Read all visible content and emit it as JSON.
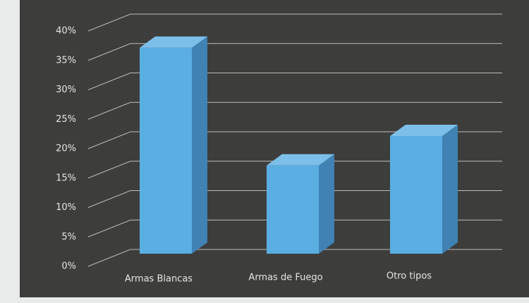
{
  "chart_data": {
    "type": "bar3d",
    "categories": [
      "Armas Blancas",
      "Armas de Fuego",
      "Otro tipos"
    ],
    "values": [
      35,
      15,
      20
    ],
    "color": "#5aaee2",
    "ylim": [
      0,
      40
    ],
    "yticks": [
      {
        "value": 0,
        "label": "0%"
      },
      {
        "value": 5,
        "label": "5%"
      },
      {
        "value": 10,
        "label": "10%"
      },
      {
        "value": 15,
        "label": "15%"
      },
      {
        "value": 20,
        "label": "20%"
      },
      {
        "value": 25,
        "label": "25%"
      },
      {
        "value": 30,
        "label": "30%"
      },
      {
        "value": 35,
        "label": "35%"
      },
      {
        "value": 40,
        "label": "40%"
      }
    ],
    "grid": true
  }
}
